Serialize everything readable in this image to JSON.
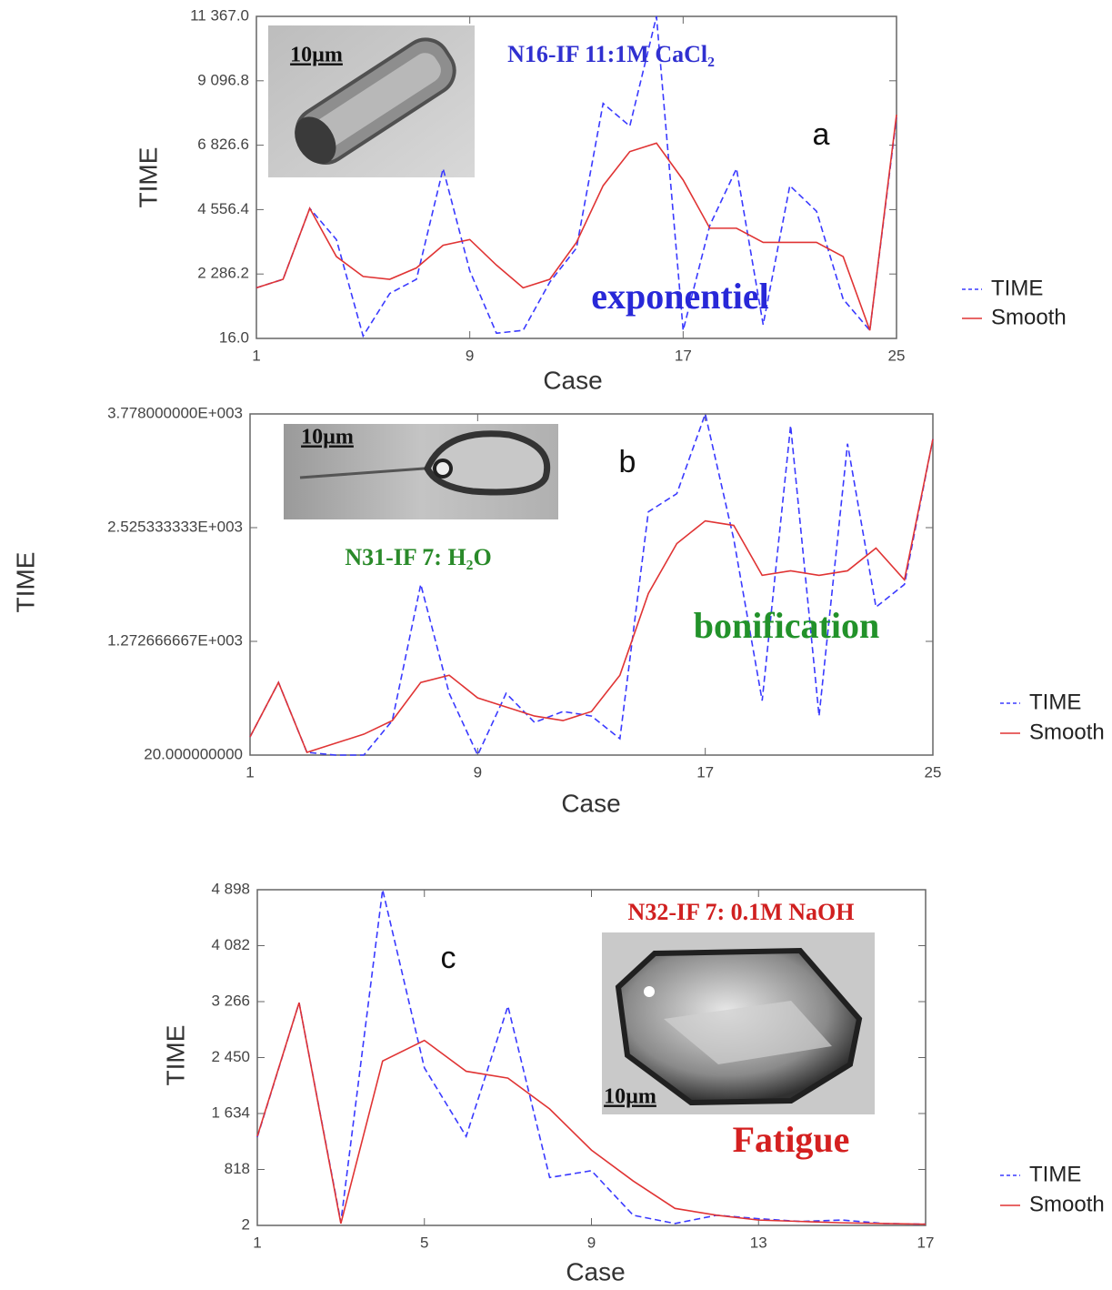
{
  "chart_data": [
    {
      "type": "line",
      "x_label": "Case",
      "y_label": "TIME",
      "x": [
        1,
        2,
        3,
        4,
        5,
        6,
        7,
        8,
        9,
        10,
        11,
        12,
        13,
        14,
        15,
        16,
        17,
        18,
        19,
        20,
        21,
        22,
        23,
        24,
        25
      ],
      "xlim": [
        1,
        25
      ],
      "xticks": [
        1,
        9,
        17,
        25
      ],
      "ylim": [
        16,
        11367
      ],
      "yticks": [
        {
          "value": 16,
          "label": "16.0"
        },
        {
          "value": 2286.2,
          "label": "2 286.2"
        },
        {
          "value": 4556.4,
          "label": "4 556.4"
        },
        {
          "value": 6826.6,
          "label": "6 826.6"
        },
        {
          "value": 9096.8,
          "label": "9 096.8"
        },
        {
          "value": 11367,
          "label": "11 367.0"
        }
      ],
      "series": [
        {
          "name": "TIME",
          "color": "#3a3aff",
          "values": [
            1800,
            2100,
            4600,
            3500,
            100,
            1600,
            2100,
            6000,
            2400,
            200,
            300,
            2000,
            3200,
            8300,
            7500,
            11367,
            300,
            4000,
            6000,
            500,
            5400,
            4500,
            1400,
            300,
            7800
          ]
        },
        {
          "name": "Smooth",
          "color": "#e03434",
          "values": [
            1800,
            2100,
            4600,
            2900,
            2200,
            2100,
            2500,
            3300,
            3500,
            2600,
            1800,
            2100,
            3400,
            5400,
            6600,
            6900,
            5600,
            3900,
            3900,
            3400,
            3400,
            3400,
            2900,
            300,
            7900
          ]
        }
      ],
      "annotations": [
        {
          "text": "10µm",
          "color": "#111111"
        },
        {
          "text": "N16-IF 11:1M CaCl₂",
          "color": "#3030d0"
        },
        {
          "text": "a",
          "color": "#111111"
        },
        {
          "text": "exponentiel",
          "color": "#2828d8"
        }
      ]
    },
    {
      "type": "line",
      "x_label": "Case",
      "y_label": "TIME",
      "x": [
        1,
        2,
        3,
        4,
        5,
        6,
        7,
        8,
        9,
        10,
        11,
        12,
        13,
        14,
        15,
        16,
        17,
        18,
        19,
        20,
        21,
        22,
        23,
        24,
        25
      ],
      "xlim": [
        1,
        25
      ],
      "xticks": [
        1,
        9,
        17,
        25
      ],
      "ylim": [
        20,
        3778
      ],
      "yticks": [
        {
          "value": 20,
          "label": "20.000000000"
        },
        {
          "value": 1272.666667,
          "label": "1.272666667E+003"
        },
        {
          "value": 2525.333333,
          "label": "2.525333333E+003"
        },
        {
          "value": 3778,
          "label": "3.778000000E+003"
        }
      ],
      "series": [
        {
          "name": "TIME",
          "color": "#3a3aff",
          "values": [
            220,
            820,
            50,
            20,
            20,
            400,
            1900,
            700,
            20,
            700,
            380,
            500,
            450,
            200,
            2700,
            2900,
            3778,
            2400,
            620,
            3650,
            450,
            3450,
            1650,
            1900,
            3500
          ]
        },
        {
          "name": "Smooth",
          "color": "#e03434",
          "values": [
            220,
            820,
            50,
            150,
            250,
            400,
            820,
            900,
            650,
            550,
            450,
            400,
            500,
            900,
            1800,
            2350,
            2600,
            2550,
            2000,
            2050,
            2000,
            2050,
            2300,
            1950,
            3500
          ]
        }
      ],
      "annotations": [
        {
          "text": "10µm",
          "color": "#111111"
        },
        {
          "text": "N31-IF 7: H₂O",
          "color": "#2a8a2a"
        },
        {
          "text": "b",
          "color": "#111111"
        },
        {
          "text": "bonification",
          "color": "#22922a"
        }
      ]
    },
    {
      "type": "line",
      "x_label": "Case",
      "y_label": "TIME",
      "x": [
        1,
        2,
        3,
        4,
        5,
        6,
        7,
        8,
        9,
        10,
        11,
        12,
        13,
        14,
        15,
        16,
        17
      ],
      "xlim": [
        1,
        17
      ],
      "xticks": [
        1,
        5,
        9,
        13,
        17
      ],
      "ylim": [
        2,
        4898
      ],
      "yticks": [
        2,
        818,
        {
          "value": 1634,
          "label": "1 634"
        },
        {
          "value": 2450,
          "label": "2 450"
        },
        {
          "value": 3266,
          "label": "3 266"
        },
        {
          "value": 4082,
          "label": "4 082"
        },
        {
          "value": 4898,
          "label": "4 898"
        }
      ],
      "series": [
        {
          "name": "TIME",
          "color": "#3a3aff",
          "values": [
            1290,
            3250,
            50,
            4898,
            2300,
            1300,
            3200,
            700,
            800,
            150,
            30,
            150,
            100,
            60,
            80,
            30,
            20
          ]
        },
        {
          "name": "Smooth",
          "color": "#e03434",
          "values": [
            1300,
            3250,
            30,
            2400,
            2700,
            2250,
            2150,
            1700,
            1100,
            650,
            250,
            150,
            80,
            60,
            40,
            30,
            20
          ]
        }
      ],
      "annotations": [
        {
          "text": "N32-IF 7: 0.1M NaOH",
          "color": "#d02020"
        },
        {
          "text": "c",
          "color": "#111111"
        },
        {
          "text": "10µm",
          "color": "#111111"
        },
        {
          "text": "Fatigue",
          "color": "#d42020"
        }
      ]
    }
  ]
}
